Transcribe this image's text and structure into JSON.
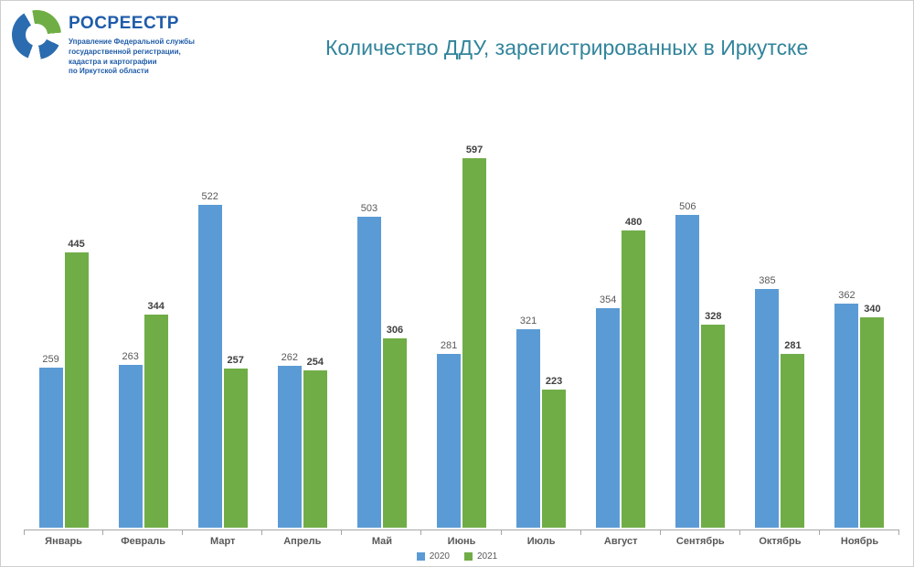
{
  "logo": {
    "brand": "РОСРЕЕСТР",
    "sub_lines": {
      "0": "Управление Федеральной службы",
      "1": "государственной регистрации,",
      "2": "кадастра и картографии",
      "3": "по Иркутской области"
    },
    "brand_color": "#1F5CA9"
  },
  "chart_data": {
    "type": "bar",
    "title": "Количество ДДУ, зарегистрированных в Иркутске",
    "xlabel": "",
    "ylabel": "",
    "categories": [
      "Январь",
      "Февраль",
      "Март",
      "Апрель",
      "Май",
      "Июнь",
      "Июль",
      "Август",
      "Сентябрь",
      "Октябрь",
      "Ноябрь"
    ],
    "series": [
      {
        "name": "2020",
        "color": "#5B9BD5",
        "values": [
          259,
          263,
          522,
          262,
          503,
          281,
          321,
          354,
          506,
          385,
          362
        ]
      },
      {
        "name": "2021",
        "color": "#70AD47",
        "values": [
          445,
          344,
          257,
          254,
          306,
          597,
          223,
          480,
          328,
          281,
          340
        ]
      }
    ],
    "ylim": [
      0,
      650
    ],
    "grid": false,
    "legend_position": "bottom",
    "value_labels": true
  },
  "colors": {
    "title": "#31849B",
    "axis": "#A6A6A6",
    "label_2020": "#595959",
    "label_2021": "#404040"
  }
}
